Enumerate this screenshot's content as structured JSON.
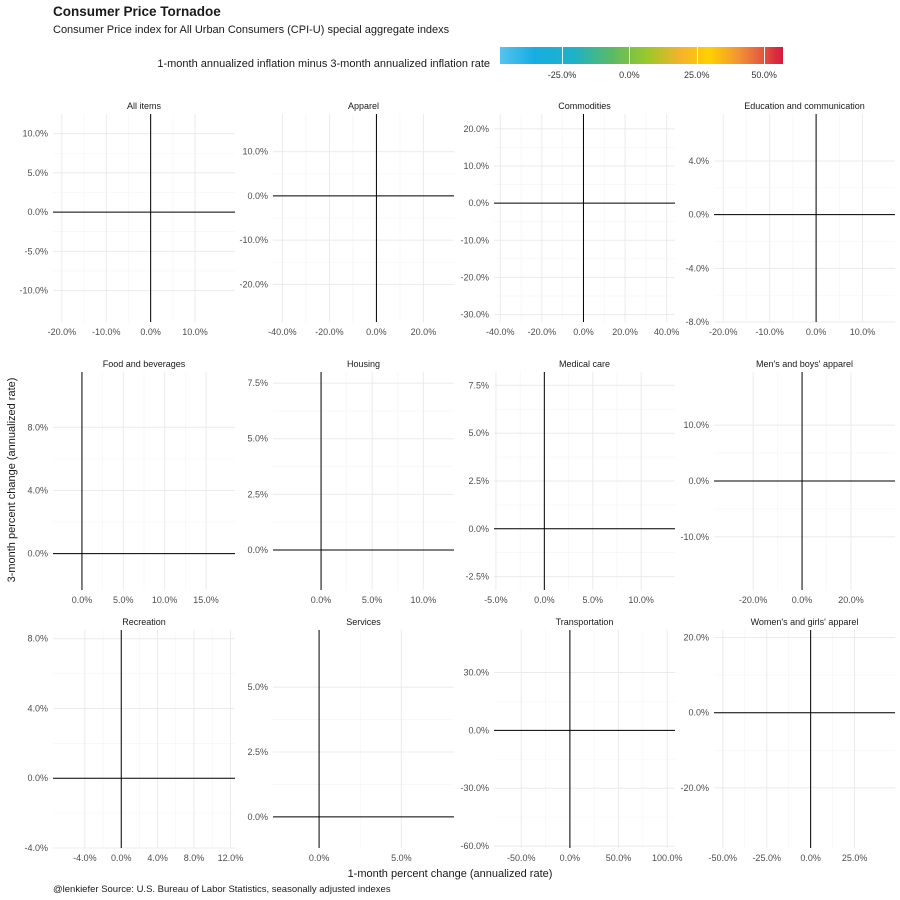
{
  "title": "Consumer Price Tornadoe",
  "subtitle": "Consumer Price index for All Urban Consumers (CPI-U) special aggregate indexs",
  "caption": "@lenkiefer Source: U.S. Bureau of Labor Statistics, seasonally adjusted indexes",
  "legend": {
    "title": "1-month annualized inflation minus 3-month annualized inflation rate",
    "range": [
      -48,
      57
    ],
    "ticks": [
      "-25.0%",
      "0.0%",
      "25.0%",
      "50.0%"
    ],
    "tick_values": [
      -25,
      0,
      25,
      50
    ],
    "colors": [
      "#57c3ee",
      "#16aee3",
      "#5bbb63",
      "#9cc82a",
      "#ffd100",
      "#f29633",
      "#d6173f"
    ]
  },
  "chart_data": {
    "type": "scatter",
    "xlabel": "1-month percent change (annualized rate)",
    "ylabel": "3-month percent change (annualized rate)",
    "grid": true,
    "facets": [
      {
        "name": "All items",
        "xlim": [
          -22,
          19
        ],
        "ylim": [
          -14,
          12.5
        ],
        "xticks": [
          -20,
          -10,
          0,
          10
        ],
        "xtick_labels": [
          "-20.0%",
          "-10.0%",
          "0.0%",
          "10.0%"
        ],
        "yticks": [
          -10,
          -5,
          0,
          5,
          10
        ],
        "ytick_labels": [
          "-10.0%",
          "-5.0%",
          "0.0%",
          "5.0%",
          "10.0%"
        ]
      },
      {
        "name": "Apparel",
        "xlim": [
          -44,
          33
        ],
        "ylim": [
          -28.5,
          18.5
        ],
        "xticks": [
          -40,
          -20,
          0,
          20
        ],
        "xtick_labels": [
          "-40.0%",
          "-20.0%",
          "0.0%",
          "20.0%"
        ],
        "yticks": [
          -20,
          -10,
          0,
          10
        ],
        "ytick_labels": [
          "-20.0%",
          "-10.0%",
          "0.0%",
          "10.0%"
        ]
      },
      {
        "name": "Commodities",
        "xlim": [
          -43,
          44
        ],
        "ylim": [
          -32,
          24
        ],
        "xticks": [
          -40,
          -20,
          0,
          20,
          40
        ],
        "xtick_labels": [
          "-40.0%",
          "-20.0%",
          "0.0%",
          "20.0%",
          "40.0%"
        ],
        "yticks": [
          -30,
          -20,
          -10,
          0,
          10,
          20
        ],
        "ytick_labels": [
          "-30.0%",
          "-20.0%",
          "-10.0%",
          "0.0%",
          "10.0%",
          "20.0%"
        ]
      },
      {
        "name": "Education and communication",
        "xlim": [
          -22,
          17
        ],
        "ylim": [
          -8.0,
          7.5
        ],
        "xticks": [
          -20,
          -10,
          0,
          10
        ],
        "xtick_labels": [
          "-20.0%",
          "-10.0%",
          "0.0%",
          "10.0%"
        ],
        "yticks": [
          -8,
          -4,
          0,
          4
        ],
        "ytick_labels": [
          "-8.0%",
          "-4.0%",
          "0.0%",
          "4.0%"
        ]
      },
      {
        "name": "Food and beverages",
        "xlim": [
          -3.5,
          18.5
        ],
        "ylim": [
          -2.3,
          11.5
        ],
        "xticks": [
          0,
          5,
          10,
          15
        ],
        "xtick_labels": [
          "0.0%",
          "5.0%",
          "10.0%",
          "15.0%"
        ],
        "yticks": [
          0,
          4,
          8
        ],
        "ytick_labels": [
          "0.0%",
          "4.0%",
          "8.0%"
        ]
      },
      {
        "name": "Housing",
        "xlim": [
          -4.7,
          13.0
        ],
        "ylim": [
          -1.8,
          8.0
        ],
        "xticks": [
          0,
          5,
          10
        ],
        "xtick_labels": [
          "0.0%",
          "5.0%",
          "10.0%"
        ],
        "yticks": [
          0,
          2.5,
          5,
          7.5
        ],
        "ytick_labels": [
          "0.0%",
          "2.5%",
          "5.0%",
          "7.5%"
        ]
      },
      {
        "name": "Medical care",
        "xlim": [
          -5.2,
          13.5
        ],
        "ylim": [
          -3.2,
          8.2
        ],
        "xticks": [
          -5,
          0,
          5,
          10
        ],
        "xtick_labels": [
          "-5.0%",
          "0.0%",
          "5.0%",
          "10.0%"
        ],
        "yticks": [
          -2.5,
          0,
          2.5,
          5,
          7.5
        ],
        "ytick_labels": [
          "-2.5%",
          "0.0%",
          "2.5%",
          "5.0%",
          "7.5%"
        ]
      },
      {
        "name": "Men's and boys' apparel",
        "xlim": [
          -36,
          38
        ],
        "ylim": [
          -19.5,
          19.5
        ],
        "xticks": [
          -20,
          0,
          20
        ],
        "xtick_labels": [
          "-20.0%",
          "0.0%",
          "20.0%"
        ],
        "yticks": [
          -10,
          0,
          10
        ],
        "ytick_labels": [
          "-10.0%",
          "0.0%",
          "10.0%"
        ]
      },
      {
        "name": "Recreation",
        "xlim": [
          -7.5,
          12.5
        ],
        "ylim": [
          -4.0,
          8.5
        ],
        "xticks": [
          -4,
          0,
          4,
          8,
          12
        ],
        "xtick_labels": [
          "-4.0%",
          "0.0%",
          "4.0%",
          "8.0%",
          "12.0%"
        ],
        "yticks": [
          -4,
          0,
          4,
          8
        ],
        "ytick_labels": [
          "-4.0%",
          "0.0%",
          "4.0%",
          "8.0%"
        ]
      },
      {
        "name": "Services",
        "xlim": [
          -2.8,
          8.2
        ],
        "ylim": [
          -1.2,
          7.2
        ],
        "xticks": [
          0,
          5
        ],
        "xtick_labels": [
          "0.0%",
          "5.0%"
        ],
        "yticks": [
          0,
          2.5,
          5
        ],
        "ytick_labels": [
          "0.0%",
          "2.5%",
          "5.0%"
        ]
      },
      {
        "name": "Transportation",
        "xlim": [
          -78,
          108
        ],
        "ylim": [
          -61,
          52
        ],
        "xticks": [
          -50,
          0,
          50,
          100
        ],
        "xtick_labels": [
          "-50.0%",
          "0.0%",
          "50.0%",
          "100.0%"
        ],
        "yticks": [
          -60,
          -30,
          0,
          30
        ],
        "ytick_labels": [
          "-60.0%",
          "-30.0%",
          "0.0%",
          "30.0%"
        ]
      },
      {
        "name": "Women's and girls' apparel",
        "xlim": [
          -55,
          48
        ],
        "ylim": [
          -36,
          22
        ],
        "xticks": [
          -50,
          -25,
          0,
          25
        ],
        "xtick_labels": [
          "-50.0%",
          "-25.0%",
          "0.0%",
          "25.0%"
        ],
        "yticks": [
          -20,
          0,
          20
        ],
        "ytick_labels": [
          "-20.0%",
          "0.0%",
          "20.0%"
        ]
      }
    ]
  }
}
